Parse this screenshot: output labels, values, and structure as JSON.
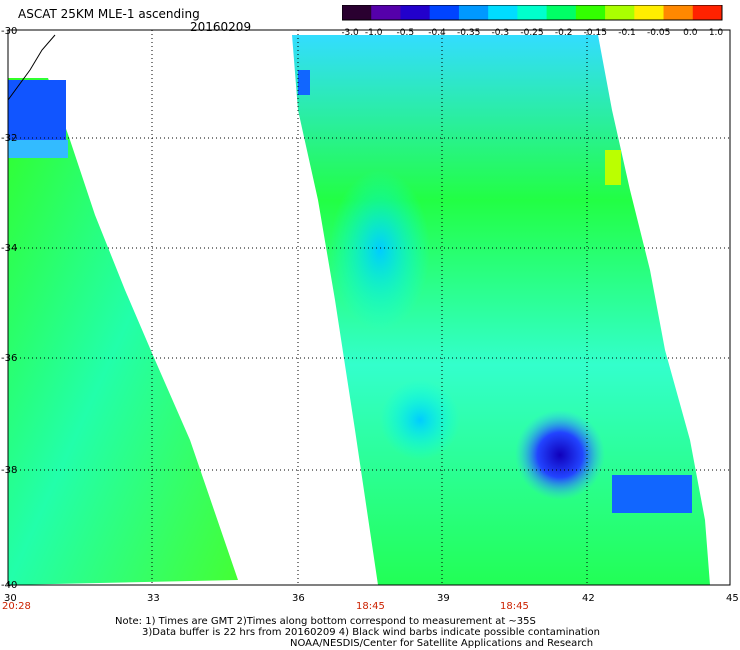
{
  "header": {
    "title": "ASCAT 25KM MLE-1 ascending",
    "date": "20160209"
  },
  "colorbar": {
    "ticks": [
      "-3.0",
      "-1.0",
      "-0.5",
      "-0.4",
      "-0.35",
      "-0.3",
      "-0.25",
      "-0.2",
      "-0.15",
      "-0.1",
      "-0.05",
      "0.0",
      "1.0"
    ],
    "colors": [
      "#2a0030",
      "#5500aa",
      "#2200cc",
      "#0044ff",
      "#0099ff",
      "#00ddff",
      "#00ffcc",
      "#00ff66",
      "#33ff00",
      "#aaff00",
      "#ffee00",
      "#ff8800",
      "#ff2200"
    ]
  },
  "map": {
    "lat_labels": [
      "-30",
      "-32",
      "-34",
      "-36",
      "-38",
      "-40"
    ],
    "lon_labels": [
      "30",
      "33",
      "36",
      "39",
      "42",
      "45"
    ],
    "time_labels": [
      "20:28",
      "18:45",
      "18:45"
    ]
  },
  "notes": {
    "line1": "Note: 1) Times are GMT 2)Times along bottom correspond to measurement at ~35S",
    "line2": "3)Data buffer is 22 hrs from 20160209 4) Black wind barbs indicate possible contamination",
    "line3": "NOAA/NESDIS/Center for Satellite Applications and Research"
  }
}
